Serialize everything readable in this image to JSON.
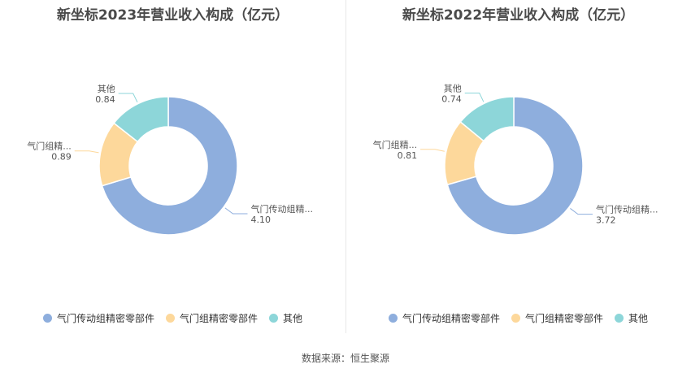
{
  "colors": {
    "series": [
      "#8eaedd",
      "#fdd89b",
      "#8dd6d9"
    ]
  },
  "footer": {
    "source": "数据来源：恒生聚源"
  },
  "chart_data": [
    {
      "type": "pie",
      "style": "donut",
      "title": "新坐标2023年营业收入构成（亿元）",
      "categories": [
        "气门传动组精密零部件",
        "气门组精密零部件",
        "其他"
      ],
      "values": [
        4.1,
        0.89,
        0.84
      ],
      "value_labels": [
        "4.10",
        "0.89",
        "0.84"
      ],
      "slice_labels": [
        "气门传动组精...",
        "气门组精...",
        "其他"
      ],
      "legend": [
        "气门传动组精密零部件",
        "气门组精密零部件",
        "其他"
      ],
      "legend_position": "bottom"
    },
    {
      "type": "pie",
      "style": "donut",
      "title": "新坐标2022年营业收入构成（亿元）",
      "categories": [
        "气门传动组精密零部件",
        "气门组精密零部件",
        "其他"
      ],
      "values": [
        3.72,
        0.81,
        0.74
      ],
      "value_labels": [
        "3.72",
        "0.81",
        "0.74"
      ],
      "slice_labels": [
        "气门传动组精...",
        "气门组精...",
        "其他"
      ],
      "legend": [
        "气门传动组精密零部件",
        "气门组精密零部件",
        "其他"
      ],
      "legend_position": "bottom"
    }
  ]
}
